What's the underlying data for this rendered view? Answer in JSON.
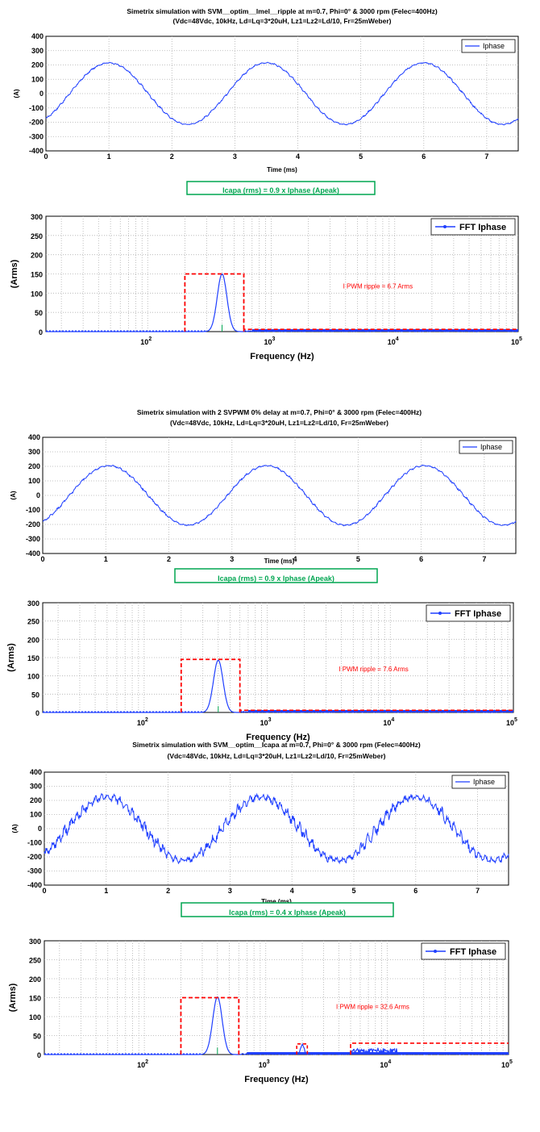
{
  "colors": {
    "signal": "#1f3fff",
    "ripple": "#ff0000",
    "fundamental": "#00a651",
    "grid": "#b0b0b0"
  },
  "chart_data": [
    {
      "type": "line",
      "title": "Simetrix simulation with SVM__optim__lmel__ripple at m=0.7, Phi=0° & 3000 rpm (Felec=400Hz)",
      "subtitle": "(Vdc=48Vdc, 10kHz, Ld=Lq=3*20uH, Lz1=Lz2=Ld/10, Fr=25mWeber)",
      "xlabel": "Time (ms)",
      "ylabel": "(A)",
      "xlim": [
        0,
        7.5
      ],
      "ylim": [
        -400,
        400
      ],
      "xticks": [
        "0",
        "1",
        "2",
        "3",
        "4",
        "5",
        "6",
        "7"
      ],
      "yticks": [
        "400",
        "300",
        "200",
        "100",
        "0",
        "-100",
        "-200",
        "-300",
        "-400"
      ],
      "grid": true,
      "legend": "top-right",
      "series": [
        {
          "name": "Iphase",
          "amplitude": 215,
          "frequency_khz": 0.4,
          "peak_at_ms": 1.0,
          "ripple_amplitude": 8
        }
      ]
    },
    {
      "type": "line",
      "title": "",
      "xlabel": "Frequency (Hz)",
      "ylabel": "(Arms)",
      "xscale": "log",
      "xlim": [
        15,
        100000
      ],
      "ylim": [
        0,
        300
      ],
      "xticks": [
        "10^2",
        "10^3",
        "10^4",
        "10^5"
      ],
      "yticks": [
        "300",
        "250",
        "200",
        "150",
        "100",
        "50",
        "0"
      ],
      "grid": true,
      "legend": "top-right",
      "series": [
        {
          "name": "FFT Iphase",
          "peak_hz": 400,
          "peak_arms": 150
        }
      ],
      "annotation": "I PWM ripple = 6.7 Arms",
      "ripple_box": {
        "x_start": 200,
        "x_end": 600,
        "height_arms": 150
      },
      "ripple_band": {
        "x_start": 600,
        "x_end": 100000,
        "height_arms": 6
      },
      "note": "Icapa (rms) = 0.9 x Iphase (Apeak)"
    },
    {
      "type": "line",
      "title": "Simetrix simulation with 2 SVPWM 0% delay at m=0.7, Phi=0° & 3000 rpm (Felec=400Hz)",
      "subtitle": "(Vdc=48Vdc, 10kHz, Ld=Lq=3*20uH, Lz1=Lz2=Ld/10, Fr=25mWeber)",
      "xlabel": "Time (ms)",
      "ylabel": "(A)",
      "xlim": [
        0,
        7.5
      ],
      "ylim": [
        -400,
        400
      ],
      "xticks": [
        "0",
        "1",
        "2",
        "3",
        "4",
        "5",
        "6",
        "7"
      ],
      "yticks": [
        "400",
        "300",
        "200",
        "100",
        "0",
        "-100",
        "-200",
        "-300",
        "-400"
      ],
      "grid": true,
      "legend": "top-right",
      "series": [
        {
          "name": "Iphase",
          "amplitude": 205,
          "frequency_khz": 0.4,
          "peak_at_ms": 1.05,
          "ripple_amplitude": 9
        }
      ]
    },
    {
      "type": "line",
      "title": "",
      "xlabel": "Frequency (Hz)",
      "ylabel": "(Arms)",
      "xscale": "log",
      "xlim": [
        15,
        100000
      ],
      "ylim": [
        0,
        300
      ],
      "xticks": [
        "10^2",
        "10^3",
        "10^4",
        "10^5"
      ],
      "yticks": [
        "300",
        "250",
        "200",
        "150",
        "100",
        "50",
        "0"
      ],
      "grid": true,
      "legend": "top-right",
      "series": [
        {
          "name": "FFT Iphase",
          "peak_hz": 400,
          "peak_arms": 143
        }
      ],
      "annotation": "I PWM ripple = 7.6 Arms",
      "ripple_box": {
        "x_start": 200,
        "x_end": 600,
        "height_arms": 145
      },
      "ripple_band": {
        "x_start": 600,
        "x_end": 100000,
        "height_arms": 6
      },
      "note": "Icapa (rms) = 0.9 x Iphase (Apeak)"
    },
    {
      "type": "line",
      "title": "Simetrix simulation with SVM__optim__Icapa at m=0.7, Phi=0° & 3000 rpm (Felec=400Hz)",
      "subtitle": "(Vdc=48Vdc, 10kHz, Ld=Lq=3*20uH, Lz1=Lz2=Ld/10, Fr=25mWeber)",
      "xlabel": "Time (ms)",
      "ylabel": "(A)",
      "xlim": [
        0,
        7.5
      ],
      "ylim": [
        -400,
        400
      ],
      "xticks": [
        "0",
        "1",
        "2",
        "3",
        "4",
        "5",
        "6",
        "7"
      ],
      "yticks": [
        "400",
        "300",
        "200",
        "100",
        "0",
        "-100",
        "-200",
        "-300",
        "-400"
      ],
      "grid": true,
      "legend": "top-right",
      "series": [
        {
          "name": "Iphase",
          "amplitude": 225,
          "frequency_khz": 0.4,
          "peak_at_ms": 1.0,
          "ripple_amplitude": 45
        }
      ]
    },
    {
      "type": "line",
      "title": "",
      "xlabel": "Frequency (Hz)",
      "ylabel": "(Arms)",
      "xscale": "log",
      "xlim": [
        15,
        100000
      ],
      "ylim": [
        0,
        300
      ],
      "xticks": [
        "10^2",
        "10^3",
        "10^4",
        "10^5"
      ],
      "yticks": [
        "300",
        "250",
        "200",
        "150",
        "100",
        "50",
        "0"
      ],
      "grid": true,
      "legend": "top-right",
      "series": [
        {
          "name": "FFT Iphase",
          "peak_hz": 400,
          "peak_arms": 152,
          "sideband_hz": 2000,
          "sideband_arms": 25
        }
      ],
      "annotation": "I PWM ripple = 32.6 Arms",
      "ripple_box": {
        "x_start": 200,
        "x_end": 600,
        "height_arms": 150
      },
      "ripple_box2": {
        "x_start": 1800,
        "x_end": 2200,
        "height_arms": 28
      },
      "ripple_band": {
        "x_start": 5000,
        "x_end": 100000,
        "height_arms": 30
      },
      "note": "Icapa (rms) = 0.4 x Iphase (Apeak)"
    }
  ]
}
